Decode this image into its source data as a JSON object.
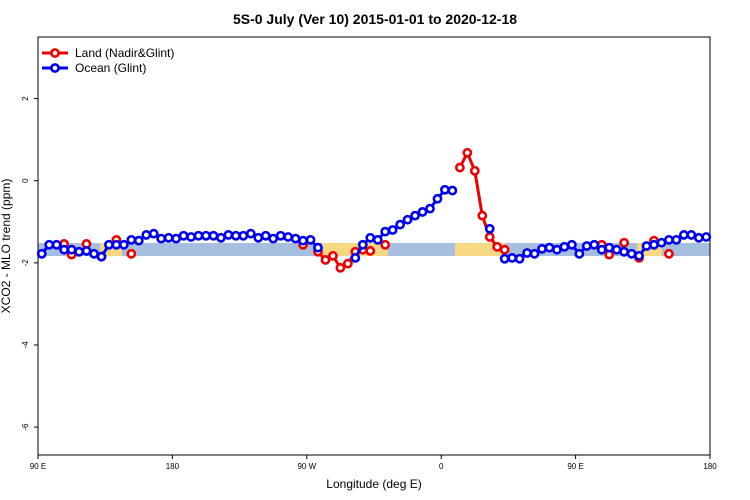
{
  "chart_data": {
    "type": "line",
    "title": "5S-0 July (Ver 10)   2015-01-01 to 2020-12-18",
    "xlabel": "Longitude (deg E)",
    "ylabel": "XCO2 - MLO trend (ppm)",
    "xlim": [
      90,
      540
    ],
    "ylim": [
      -6.68,
      3.5
    ],
    "xticks": [
      {
        "value": 90,
        "label": "90 E"
      },
      180,
      {
        "value": 270,
        "label": "90 W"
      },
      {
        "value": 360,
        "label": "0"
      },
      {
        "value": 450,
        "label": "90 E"
      },
      {
        "value": 540,
        "label": "180"
      }
    ],
    "yticks": [
      2,
      0,
      -2,
      -4,
      -6
    ],
    "legend": "top-left",
    "x": [
      92.5,
      97.5,
      102.5,
      107.5,
      112.5,
      117.5,
      122.5,
      127.5,
      132.5,
      137.5,
      142.5,
      147.5,
      152.5,
      157.5,
      162.5,
      167.5,
      172.5,
      177.5,
      182.5,
      187.5,
      192.5,
      197.5,
      202.5,
      207.5,
      212.5,
      217.5,
      222.5,
      227.5,
      232.5,
      237.5,
      242.5,
      247.5,
      252.5,
      257.5,
      262.5,
      267.5,
      272.5,
      277.5,
      282.5,
      287.5,
      292.5,
      297.5,
      302.5,
      307.5,
      312.5,
      317.5,
      322.5,
      327.5,
      332.5,
      337.5,
      342.5,
      347.5,
      352.5,
      357.5,
      362.5,
      367.5,
      372.5,
      377.5,
      382.5,
      387.5,
      392.5,
      397.5,
      402.5,
      407.5,
      412.5,
      417.5,
      422.5,
      427.5,
      432.5,
      437.5,
      442.5,
      447.5,
      452.5,
      457.5,
      462.5,
      467.5,
      472.5,
      477.5,
      482.5,
      487.5,
      492.5,
      497.5,
      502.5,
      507.5,
      512.5,
      517.5,
      522.5,
      527.5,
      532.5,
      537.5
    ],
    "series": [
      {
        "name": "Land (Nadir&Glint)",
        "color": "#ee0000",
        "values": [
          null,
          null,
          -1.56,
          -1.54,
          -1.8,
          null,
          -1.54,
          null,
          -1.85,
          null,
          -1.44,
          null,
          -1.78,
          null,
          null,
          null,
          null,
          null,
          null,
          null,
          null,
          null,
          null,
          null,
          null,
          null,
          null,
          null,
          null,
          null,
          null,
          null,
          null,
          null,
          null,
          -1.56,
          null,
          -1.73,
          -1.93,
          -1.83,
          -2.12,
          -2.02,
          -1.73,
          -1.68,
          -1.71,
          null,
          -1.56,
          null,
          null,
          null,
          null,
          null,
          null,
          null,
          null,
          null,
          0.32,
          0.68,
          0.24,
          -0.85,
          -1.37,
          -1.61,
          -1.68,
          null,
          null,
          null,
          null,
          null,
          null,
          null,
          null,
          null,
          null,
          null,
          null,
          -1.56,
          -1.8,
          null,
          -1.51,
          null,
          -1.88,
          null,
          -1.46,
          null,
          -1.78,
          null,
          null,
          null,
          null,
          null
        ]
      },
      {
        "name": "Ocean (Glint)",
        "color": "#0000ee",
        "values": [
          -1.78,
          -1.56,
          -1.56,
          -1.68,
          -1.68,
          -1.73,
          -1.71,
          -1.78,
          -1.85,
          -1.56,
          -1.56,
          -1.56,
          -1.44,
          -1.46,
          -1.32,
          -1.29,
          -1.41,
          -1.39,
          -1.41,
          -1.34,
          -1.37,
          -1.34,
          -1.34,
          -1.34,
          -1.39,
          -1.32,
          -1.34,
          -1.34,
          -1.29,
          -1.39,
          -1.34,
          -1.41,
          -1.34,
          -1.37,
          -1.41,
          -1.46,
          -1.44,
          -1.63,
          null,
          null,
          null,
          null,
          -1.88,
          -1.56,
          -1.39,
          -1.44,
          -1.24,
          -1.2,
          -1.07,
          -0.95,
          -0.85,
          -0.76,
          -0.68,
          -0.44,
          -0.22,
          -0.24,
          null,
          null,
          null,
          null,
          -1.17,
          null,
          -1.9,
          -1.88,
          -1.9,
          -1.76,
          -1.78,
          -1.66,
          -1.63,
          -1.68,
          -1.61,
          -1.56,
          -1.78,
          -1.59,
          -1.56,
          -1.68,
          -1.63,
          -1.68,
          -1.73,
          -1.78,
          -1.83,
          -1.59,
          -1.56,
          -1.51,
          -1.44,
          -1.44,
          -1.32,
          -1.32,
          -1.39,
          -1.37
        ]
      }
    ]
  }
}
